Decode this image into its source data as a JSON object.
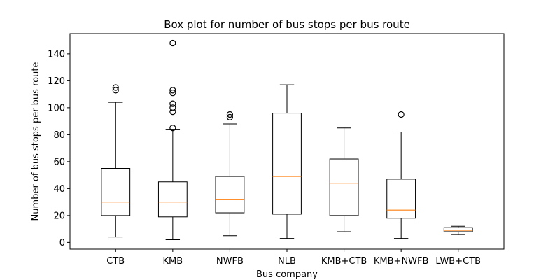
{
  "chart_data": {
    "type": "box",
    "title": "Box plot for number of bus stops per bus route",
    "xlabel": "Bus company",
    "ylabel": "Number of bus stops per bus route",
    "ylim": [
      -5,
      155
    ],
    "yticks": [
      0,
      20,
      40,
      60,
      80,
      100,
      120,
      140
    ],
    "grid": false,
    "colors": {
      "box": "#000000",
      "median": "#ff7f0e",
      "outlier": "#000000"
    },
    "categories": [
      "CTB",
      "KMB",
      "NWFB",
      "NLB",
      "KMB+CTB",
      "KMB+NWFB",
      "LWB+CTB"
    ],
    "boxes": [
      {
        "name": "CTB",
        "whisker_low": 4,
        "q1": 20,
        "median": 30,
        "q3": 55,
        "whisker_high": 104,
        "outliers": [
          113,
          115
        ]
      },
      {
        "name": "KMB",
        "whisker_low": 2,
        "q1": 19,
        "median": 30,
        "q3": 45,
        "whisker_high": 84,
        "outliers": [
          85,
          97,
          100,
          103,
          111,
          113,
          148
        ]
      },
      {
        "name": "NWFB",
        "whisker_low": 5,
        "q1": 22,
        "median": 32,
        "q3": 49,
        "whisker_high": 88,
        "outliers": [
          93,
          95
        ]
      },
      {
        "name": "NLB",
        "whisker_low": 3,
        "q1": 21,
        "median": 49,
        "q3": 96,
        "whisker_high": 117,
        "outliers": []
      },
      {
        "name": "KMB+CTB",
        "whisker_low": 8,
        "q1": 20,
        "median": 44,
        "q3": 62,
        "whisker_high": 85,
        "outliers": []
      },
      {
        "name": "KMB+NWFB",
        "whisker_low": 3,
        "q1": 18,
        "median": 24,
        "q3": 47,
        "whisker_high": 82,
        "outliers": [
          95
        ]
      },
      {
        "name": "LWB+CTB",
        "whisker_low": 6,
        "q1": 8,
        "median": 9,
        "q3": 11,
        "whisker_high": 12,
        "outliers": []
      }
    ]
  }
}
